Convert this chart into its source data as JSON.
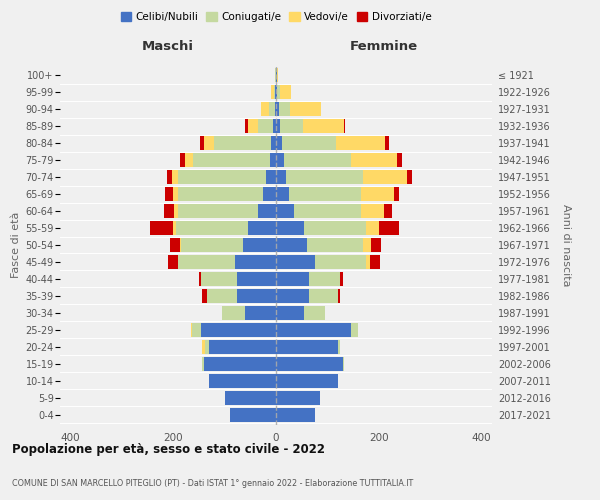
{
  "age_groups": [
    "0-4",
    "5-9",
    "10-14",
    "15-19",
    "20-24",
    "25-29",
    "30-34",
    "35-39",
    "40-44",
    "45-49",
    "50-54",
    "55-59",
    "60-64",
    "65-69",
    "70-74",
    "75-79",
    "80-84",
    "85-89",
    "90-94",
    "95-99",
    "100+"
  ],
  "birth_years": [
    "2017-2021",
    "2012-2016",
    "2007-2011",
    "2002-2006",
    "1997-2001",
    "1992-1996",
    "1987-1991",
    "1982-1986",
    "1977-1981",
    "1972-1976",
    "1967-1971",
    "1962-1966",
    "1957-1961",
    "1952-1956",
    "1947-1951",
    "1942-1946",
    "1937-1941",
    "1932-1936",
    "1927-1931",
    "1922-1926",
    "≤ 1921"
  ],
  "males": {
    "celibi": [
      90,
      100,
      130,
      140,
      130,
      145,
      60,
      75,
      75,
      80,
      65,
      55,
      35,
      25,
      20,
      12,
      10,
      5,
      2,
      1,
      0
    ],
    "coniugati": [
      0,
      0,
      0,
      3,
      8,
      18,
      45,
      60,
      70,
      110,
      120,
      140,
      155,
      165,
      170,
      150,
      110,
      30,
      12,
      3,
      1
    ],
    "vedovi": [
      0,
      0,
      0,
      0,
      5,
      3,
      0,
      0,
      0,
      0,
      2,
      5,
      8,
      10,
      12,
      15,
      20,
      20,
      15,
      6,
      1
    ],
    "divorziati": [
      0,
      0,
      0,
      0,
      0,
      0,
      0,
      8,
      5,
      20,
      20,
      45,
      20,
      15,
      10,
      10,
      8,
      5,
      0,
      0,
      0
    ]
  },
  "females": {
    "nubili": [
      75,
      85,
      120,
      130,
      120,
      145,
      55,
      65,
      65,
      75,
      60,
      55,
      35,
      25,
      20,
      15,
      12,
      8,
      5,
      2,
      1
    ],
    "coniugate": [
      0,
      0,
      0,
      3,
      5,
      15,
      40,
      55,
      60,
      100,
      110,
      120,
      130,
      140,
      150,
      130,
      105,
      45,
      22,
      6,
      1
    ],
    "vedove": [
      0,
      0,
      0,
      0,
      0,
      0,
      0,
      0,
      0,
      8,
      15,
      25,
      45,
      65,
      85,
      90,
      95,
      80,
      60,
      22,
      2
    ],
    "divorziate": [
      0,
      0,
      0,
      0,
      0,
      0,
      0,
      5,
      5,
      20,
      20,
      40,
      15,
      10,
      10,
      10,
      8,
      1,
      0,
      0,
      0
    ]
  },
  "color_celibi": "#4472C4",
  "color_coniugati": "#C5D9A0",
  "color_vedovi": "#FFD966",
  "color_divorziati": "#CC0000",
  "title": "Popolazione per età, sesso e stato civile - 2022",
  "subtitle": "COMUNE DI SAN MARCELLO PITEGLIO (PT) - Dati ISTAT 1° gennaio 2022 - Elaborazione TUTTITALIA.IT",
  "xlabel_left": "Maschi",
  "xlabel_right": "Femmine",
  "ylabel_left": "Fasce di età",
  "ylabel_right": "Anni di nascita",
  "xlim": 420,
  "legend_labels": [
    "Celibi/Nubili",
    "Coniugati/e",
    "Vedovi/e",
    "Divorziati/e"
  ],
  "bg_color": "#f0f0f0",
  "bar_height": 0.82
}
